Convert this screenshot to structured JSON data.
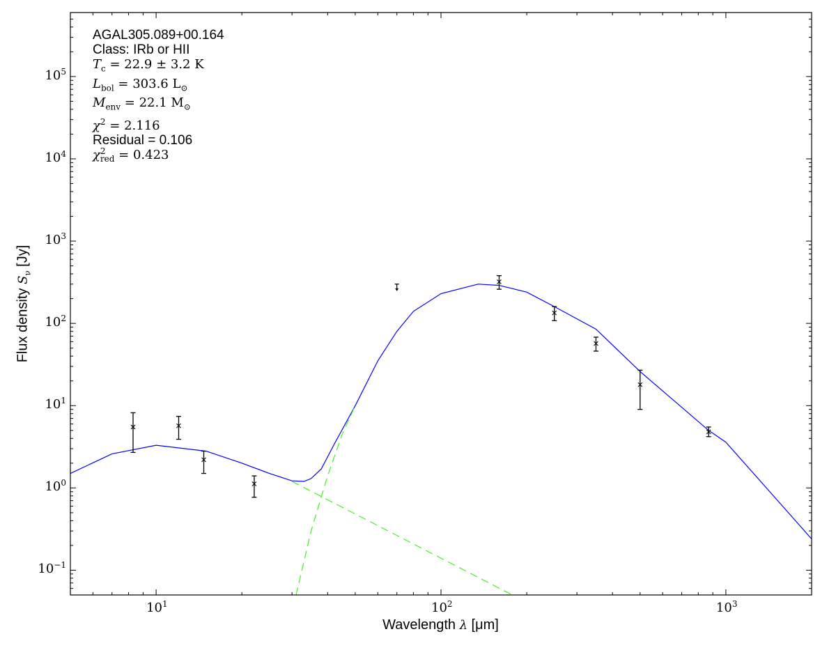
{
  "chart_data": {
    "type": "scatter",
    "xlabel": "Wavelength λ [μm]",
    "ylabel": "Flux density S_ν [Jy]",
    "xlabel_parts": {
      "pre": "Wavelength ",
      "sym": "λ",
      "post": " [μm]"
    },
    "ylabel_parts": {
      "pre": "Flux density ",
      "sym": "S",
      "sub": "ν",
      "post": " [Jy]"
    },
    "xscale": "log",
    "yscale": "log",
    "xlim": [
      5,
      2000
    ],
    "ylim": [
      0.05,
      600000
    ],
    "grid": false,
    "xticks": [
      {
        "base": "10",
        "exp": "1",
        "value": 10
      },
      {
        "base": "10",
        "exp": "2",
        "value": 100
      },
      {
        "base": "10",
        "exp": "3",
        "value": 1000
      }
    ],
    "yticks": [
      {
        "base": "10",
        "exp": "−1",
        "value": 0.1
      },
      {
        "base": "10",
        "exp": "0",
        "value": 1
      },
      {
        "base": "10",
        "exp": "1",
        "value": 10
      },
      {
        "base": "10",
        "exp": "2",
        "value": 100
      },
      {
        "base": "10",
        "exp": "3",
        "value": 1000
      },
      {
        "base": "10",
        "exp": "4",
        "value": 10000
      },
      {
        "base": "10",
        "exp": "5",
        "value": 100000
      }
    ],
    "annotations": {
      "name": "AGAL305.089+00.164",
      "class": "Class: IRb or HII",
      "tc": {
        "sym": "T",
        "sub": "c",
        "rest": " = 22.9 ± 3.2 K"
      },
      "lbol": {
        "sym": "L",
        "sub": "bol",
        "rest": " = 303.6 L",
        "restsub": "⊙"
      },
      "menv": {
        "sym": "M",
        "sub": "env",
        "rest": " = 22.1 M",
        "restsub": "⊙"
      },
      "chi2": {
        "sym": "χ",
        "sup": "2",
        "rest": " = 2.116"
      },
      "residual": "Residual = 0.106",
      "chi2red": {
        "sym": "χ",
        "sup": "2",
        "sub": "red",
        "rest": " = 0.423"
      }
    },
    "points": [
      {
        "x": 8.3,
        "y": 5.5,
        "ylo": 2.7,
        "yhi": 8.2
      },
      {
        "x": 12.0,
        "y": 5.7,
        "ylo": 3.9,
        "yhi": 7.4
      },
      {
        "x": 14.7,
        "y": 2.2,
        "ylo": 1.5,
        "yhi": 2.8
      },
      {
        "x": 22.1,
        "y": 1.12,
        "ylo": 0.77,
        "yhi": 1.4
      },
      {
        "x": 160,
        "y": 320,
        "ylo": 260,
        "yhi": 380
      },
      {
        "x": 250,
        "y": 134,
        "ylo": 108,
        "yhi": 160
      },
      {
        "x": 350,
        "y": 57,
        "ylo": 46,
        "yhi": 68
      },
      {
        "x": 500,
        "y": 18,
        "ylo": 9,
        "yhi": 27
      },
      {
        "x": 870,
        "y": 4.8,
        "ylo": 4.2,
        "yhi": 5.5
      }
    ],
    "upper_limits": [
      {
        "x": 70,
        "y": 300
      }
    ],
    "series": [
      {
        "style": "solid",
        "color": "#0000ff",
        "x": [
          5,
          7,
          10,
          15,
          20,
          25,
          30,
          33,
          35,
          38,
          42,
          50,
          60,
          70,
          80,
          100,
          135,
          160,
          200,
          250,
          350,
          500,
          870,
          1000,
          2000
        ],
        "y": [
          1.5,
          2.6,
          3.3,
          2.8,
          2.0,
          1.5,
          1.22,
          1.2,
          1.3,
          1.7,
          3.3,
          10,
          35,
          80,
          140,
          230,
          300,
          290,
          240,
          160,
          85,
          26,
          5.0,
          3.6,
          0.24
        ]
      },
      {
        "style": "dashed",
        "color": "#44ee22",
        "x": [
          30,
          178
        ],
        "y": [
          1.2,
          0.05
        ]
      },
      {
        "style": "dashed",
        "color": "#44ee22",
        "x": [
          31,
          35,
          40,
          45,
          50
        ],
        "y": [
          0.05,
          0.3,
          1.4,
          4.5,
          10
        ]
      }
    ]
  }
}
